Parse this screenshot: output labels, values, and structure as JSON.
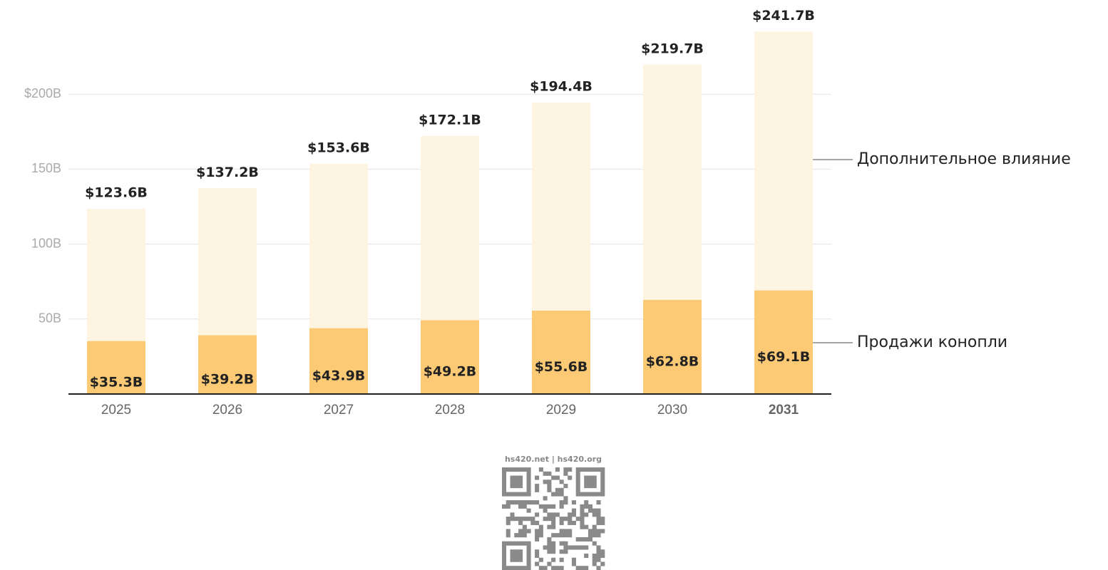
{
  "chart_data": {
    "type": "bar",
    "layout": "overlay",
    "categories": [
      "2025",
      "2026",
      "2027",
      "2028",
      "2029",
      "2030",
      "2031"
    ],
    "series": [
      {
        "name": "Дополнительное влияние",
        "color": "#fdf5e1",
        "values": [
          123.6,
          137.2,
          153.6,
          172.1,
          194.4,
          219.7,
          241.7
        ],
        "value_labels": [
          "$123.6B",
          "$137.2B",
          "$153.6B",
          "$172.1B",
          "$194.4B",
          "$219.7B",
          "$241.7B"
        ]
      },
      {
        "name": "Продажи конопли",
        "color": "#fcc974",
        "values": [
          35.3,
          39.2,
          43.9,
          49.2,
          55.6,
          62.8,
          69.1
        ],
        "value_labels": [
          "$35.3B",
          "$39.2B",
          "$43.9B",
          "$49.2B",
          "$55.6B",
          "$62.8B",
          "$69.1B"
        ]
      }
    ],
    "ylim": [
      0,
      250
    ],
    "yticks": [
      {
        "value": 50,
        "label": "50B"
      },
      {
        "value": 100,
        "label": "100B"
      },
      {
        "value": 150,
        "label": "150B"
      },
      {
        "value": 200,
        "label": "$200B"
      }
    ],
    "grid": true
  },
  "footer": {
    "text": "hs420.net | hs420.org"
  }
}
